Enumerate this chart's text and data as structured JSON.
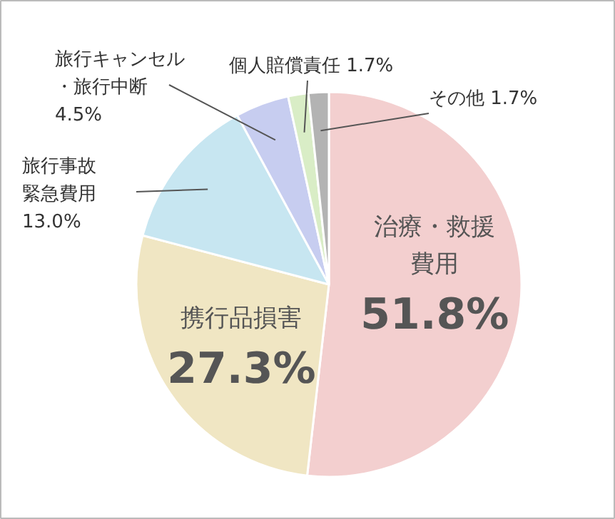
{
  "chart_data": {
    "type": "pie",
    "categories": [
      "治療・救援費用",
      "携行品損害",
      "旅行事故緊急費用",
      "旅行キャンセル・旅行中断",
      "個人賠償責任",
      "その他"
    ],
    "values": [
      51.8,
      27.3,
      13.0,
      4.5,
      1.7,
      1.7
    ],
    "value_labels": [
      "51.8%",
      "27.3%",
      "13.0%",
      "4.5%",
      "1.7%",
      "1.7%"
    ],
    "colors": [
      "#f3cfcf",
      "#f0e6c3",
      "#c7e6f1",
      "#c7cdf0",
      "#d9edc6",
      "#b3b3b3"
    ]
  }
}
